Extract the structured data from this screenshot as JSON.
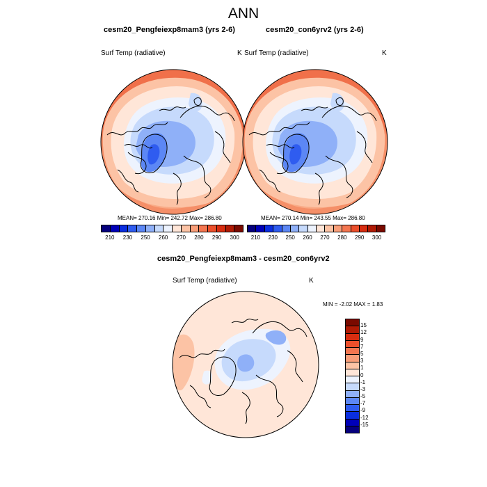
{
  "title": "ANN",
  "panels": [
    {
      "title": "cesm20_Pengfeiexp8mam3 (yrs 2-6)",
      "variable": "Surf Temp (radiative)",
      "unit": "K",
      "stats": "MEAN= 270.16  Min= 242.72  Max= 286.80"
    },
    {
      "title": "cesm20_con6yrv2 (yrs 2-6)",
      "variable": "Surf Temp (radiative)",
      "unit": "K",
      "stats": "MEAN= 270.14  Min= 243.55  Max= 286.80"
    }
  ],
  "diff_panel": {
    "title": "cesm20_Pengfeiexp8mam3 - cesm20_con6yrv2",
    "variable": "Surf Temp (radiative)",
    "unit": "K",
    "stats": "MIN =  -2.02 MAX =   1.83"
  },
  "colorbar_abs": {
    "labels": [
      "210",
      "230",
      "250",
      "260",
      "270",
      "280",
      "290",
      "300"
    ],
    "colors": [
      "#06007e",
      "#0000b8",
      "#0a2ee0",
      "#2f5cf0",
      "#5c87f5",
      "#8fb0f8",
      "#c6dafc",
      "#edf3fe",
      "#ffe6d8",
      "#fcc3a5",
      "#f99e79",
      "#f47650",
      "#ec4f2b",
      "#d82d10",
      "#b01a04",
      "#7a0a00"
    ]
  },
  "colorbar_diff": {
    "labels": [
      "15",
      "12",
      "9",
      "7",
      "5",
      "3",
      "1",
      "0",
      "-1",
      "-3",
      "-5",
      "-7",
      "-9",
      "-12",
      "-15"
    ],
    "colors": [
      "#7a0a00",
      "#b01a04",
      "#d82d10",
      "#ec4f2b",
      "#f47650",
      "#f99e79",
      "#fcc3a5",
      "#ffe6d8",
      "#edf3fe",
      "#c6dafc",
      "#8fb0f8",
      "#5c87f5",
      "#2f5cf0",
      "#0a2ee0",
      "#0000b8",
      "#06007e"
    ]
  }
}
